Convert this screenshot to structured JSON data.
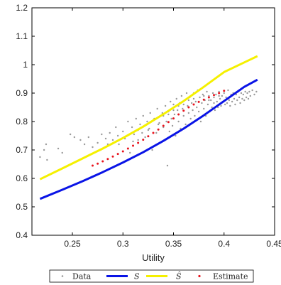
{
  "chart_data": {
    "type": "scatter",
    "title": "",
    "xlabel": "Utility",
    "ylabel": "",
    "xlim": [
      0.21,
      0.45
    ],
    "ylim": [
      0.4,
      1.2
    ],
    "x_ticks": [
      0.25,
      0.3,
      0.35,
      0.4,
      0.45
    ],
    "x_tick_labels": [
      "0.25",
      "0.3",
      "0.35",
      "0.4",
      "0.45"
    ],
    "y_ticks": [
      0.4,
      0.5,
      0.6,
      0.7,
      0.8,
      0.9,
      1.0,
      1.1,
      1.2
    ],
    "y_tick_labels": [
      "0.4",
      "0.5",
      "0.6",
      "0.7",
      "0.8",
      "0.9",
      "1",
      "1.1",
      "1.2"
    ],
    "grid": false,
    "legend_position": "bottom-outside",
    "series": [
      {
        "name": "Data",
        "kind": "scatter",
        "color": "#9a9a9a",
        "marker": "dot",
        "points": [
          [
            0.218,
            0.675
          ],
          [
            0.222,
            0.7
          ],
          [
            0.225,
            0.665
          ],
          [
            0.224,
            0.72
          ],
          [
            0.236,
            0.705
          ],
          [
            0.24,
            0.69
          ],
          [
            0.248,
            0.755
          ],
          [
            0.252,
            0.745
          ],
          [
            0.258,
            0.735
          ],
          [
            0.262,
            0.72
          ],
          [
            0.266,
            0.745
          ],
          [
            0.27,
            0.71
          ],
          [
            0.275,
            0.725
          ],
          [
            0.279,
            0.755
          ],
          [
            0.283,
            0.74
          ],
          [
            0.287,
            0.76
          ],
          [
            0.29,
            0.735
          ],
          [
            0.293,
            0.78
          ],
          [
            0.296,
            0.72
          ],
          [
            0.3,
            0.765
          ],
          [
            0.302,
            0.74
          ],
          [
            0.305,
            0.8
          ],
          [
            0.307,
            0.69
          ],
          [
            0.309,
            0.78
          ],
          [
            0.311,
            0.755
          ],
          [
            0.313,
            0.81
          ],
          [
            0.315,
            0.735
          ],
          [
            0.317,
            0.79
          ],
          [
            0.319,
            0.76
          ],
          [
            0.32,
            0.82
          ],
          [
            0.322,
            0.745
          ],
          [
            0.324,
            0.8
          ],
          [
            0.326,
            0.775
          ],
          [
            0.327,
            0.83
          ],
          [
            0.329,
            0.7
          ],
          [
            0.331,
            0.81
          ],
          [
            0.333,
            0.76
          ],
          [
            0.334,
            0.845
          ],
          [
            0.336,
            0.795
          ],
          [
            0.337,
            0.725
          ],
          [
            0.339,
            0.83
          ],
          [
            0.34,
            0.78
          ],
          [
            0.342,
            0.855
          ],
          [
            0.343,
            0.8
          ],
          [
            0.344,
            0.645
          ],
          [
            0.345,
            0.835
          ],
          [
            0.346,
            0.765
          ],
          [
            0.347,
            0.87
          ],
          [
            0.348,
            0.81
          ],
          [
            0.349,
            0.785
          ],
          [
            0.35,
            0.86
          ],
          [
            0.351,
            0.825
          ],
          [
            0.352,
            0.75
          ],
          [
            0.353,
            0.88
          ],
          [
            0.354,
            0.84
          ],
          [
            0.355,
            0.8
          ],
          [
            0.356,
            0.865
          ],
          [
            0.357,
            0.775
          ],
          [
            0.358,
            0.89
          ],
          [
            0.359,
            0.845
          ],
          [
            0.36,
            0.82
          ],
          [
            0.361,
            0.875
          ],
          [
            0.362,
            0.79
          ],
          [
            0.363,
            0.9
          ],
          [
            0.364,
            0.855
          ],
          [
            0.365,
            0.83
          ],
          [
            0.366,
            0.885
          ],
          [
            0.367,
            0.81
          ],
          [
            0.368,
            0.865
          ],
          [
            0.369,
            0.84
          ],
          [
            0.37,
            0.9
          ],
          [
            0.371,
            0.82
          ],
          [
            0.372,
            0.87
          ],
          [
            0.373,
            0.85
          ],
          [
            0.374,
            0.91
          ],
          [
            0.375,
            0.835
          ],
          [
            0.376,
            0.885
          ],
          [
            0.377,
            0.8
          ],
          [
            0.378,
            0.865
          ],
          [
            0.379,
            0.895
          ],
          [
            0.38,
            0.845
          ],
          [
            0.381,
            0.875
          ],
          [
            0.382,
            0.82
          ],
          [
            0.383,
            0.905
          ],
          [
            0.384,
            0.86
          ],
          [
            0.385,
            0.89
          ],
          [
            0.386,
            0.835
          ],
          [
            0.387,
            0.875
          ],
          [
            0.388,
            0.85
          ],
          [
            0.389,
            0.9
          ],
          [
            0.39,
            0.865
          ],
          [
            0.391,
            0.84
          ],
          [
            0.392,
            0.895
          ],
          [
            0.393,
            0.87
          ],
          [
            0.394,
            0.85
          ],
          [
            0.395,
            0.905
          ],
          [
            0.396,
            0.88
          ],
          [
            0.397,
            0.855
          ],
          [
            0.398,
            0.89
          ],
          [
            0.399,
            0.87
          ],
          [
            0.4,
            0.9
          ],
          [
            0.401,
            0.86
          ],
          [
            0.402,
            0.885
          ],
          [
            0.403,
            0.865
          ],
          [
            0.404,
            0.91
          ],
          [
            0.405,
            0.875
          ],
          [
            0.406,
            0.855
          ],
          [
            0.407,
            0.895
          ],
          [
            0.408,
            0.87
          ],
          [
            0.409,
            0.9
          ],
          [
            0.41,
            0.88
          ],
          [
            0.411,
            0.86
          ],
          [
            0.412,
            0.895
          ],
          [
            0.413,
            0.875
          ],
          [
            0.414,
            0.905
          ],
          [
            0.415,
            0.885
          ],
          [
            0.416,
            0.865
          ],
          [
            0.417,
            0.9
          ],
          [
            0.418,
            0.88
          ],
          [
            0.419,
            0.895
          ],
          [
            0.42,
            0.875
          ],
          [
            0.421,
            0.905
          ],
          [
            0.422,
            0.885
          ],
          [
            0.423,
            0.9
          ],
          [
            0.424,
            0.88
          ],
          [
            0.425,
            0.905
          ],
          [
            0.426,
            0.89
          ],
          [
            0.428,
            0.91
          ],
          [
            0.43,
            0.895
          ],
          [
            0.432,
            0.905
          ],
          [
            0.355,
            0.855
          ],
          [
            0.36,
            0.86
          ],
          [
            0.365,
            0.875
          ],
          [
            0.37,
            0.88
          ],
          [
            0.375,
            0.87
          ],
          [
            0.38,
            0.89
          ],
          [
            0.385,
            0.875
          ],
          [
            0.39,
            0.885
          ],
          [
            0.395,
            0.89
          ],
          [
            0.34,
            0.82
          ],
          [
            0.345,
            0.825
          ],
          [
            0.35,
            0.84
          ],
          [
            0.33,
            0.805
          ],
          [
            0.335,
            0.79
          ],
          [
            0.325,
            0.77
          ],
          [
            0.315,
            0.77
          ],
          [
            0.31,
            0.73
          ],
          [
            0.295,
            0.75
          ],
          [
            0.285,
            0.72
          ],
          [
            0.278,
            0.7
          ]
        ]
      },
      {
        "name": "S",
        "kind": "line",
        "color": "#0a14e6",
        "x": [
          0.218,
          0.24,
          0.26,
          0.28,
          0.3,
          0.32,
          0.34,
          0.36,
          0.38,
          0.4,
          0.42,
          0.433
        ],
        "y": [
          0.528,
          0.56,
          0.59,
          0.622,
          0.656,
          0.692,
          0.732,
          0.775,
          0.822,
          0.872,
          0.922,
          0.947
        ]
      },
      {
        "name": "Ŝ",
        "kind": "line",
        "color": "#f5f000",
        "x": [
          0.218,
          0.24,
          0.26,
          0.28,
          0.3,
          0.32,
          0.34,
          0.36,
          0.38,
          0.4,
          0.42,
          0.433
        ],
        "y": [
          0.597,
          0.635,
          0.67,
          0.705,
          0.742,
          0.782,
          0.826,
          0.872,
          0.922,
          0.974,
          1.008,
          1.03
        ]
      },
      {
        "name": "Estimate",
        "kind": "scatter",
        "color": "#e8141e",
        "marker": "dot",
        "x": [
          0.27,
          0.275,
          0.28,
          0.285,
          0.29,
          0.295,
          0.3,
          0.305,
          0.31,
          0.315,
          0.32,
          0.325,
          0.33,
          0.335,
          0.34,
          0.345,
          0.35,
          0.355,
          0.36,
          0.365,
          0.37,
          0.375,
          0.38,
          0.385,
          0.39,
          0.395,
          0.4
        ],
        "y": [
          0.645,
          0.652,
          0.66,
          0.668,
          0.677,
          0.686,
          0.695,
          0.705,
          0.715,
          0.725,
          0.736,
          0.748,
          0.76,
          0.772,
          0.785,
          0.798,
          0.811,
          0.825,
          0.838,
          0.85,
          0.86,
          0.869,
          0.877,
          0.885,
          0.893,
          0.9,
          0.908
        ]
      }
    ],
    "legend": {
      "entries": [
        {
          "label": "Data",
          "style": "dot",
          "color": "#9a9a9a"
        },
        {
          "label": "S",
          "style": "line",
          "color": "#0a14e6"
        },
        {
          "label": "Ŝ",
          "style": "line",
          "color": "#f5f000"
        },
        {
          "label": "Estimate",
          "style": "dot",
          "color": "#e8141e"
        }
      ]
    }
  }
}
